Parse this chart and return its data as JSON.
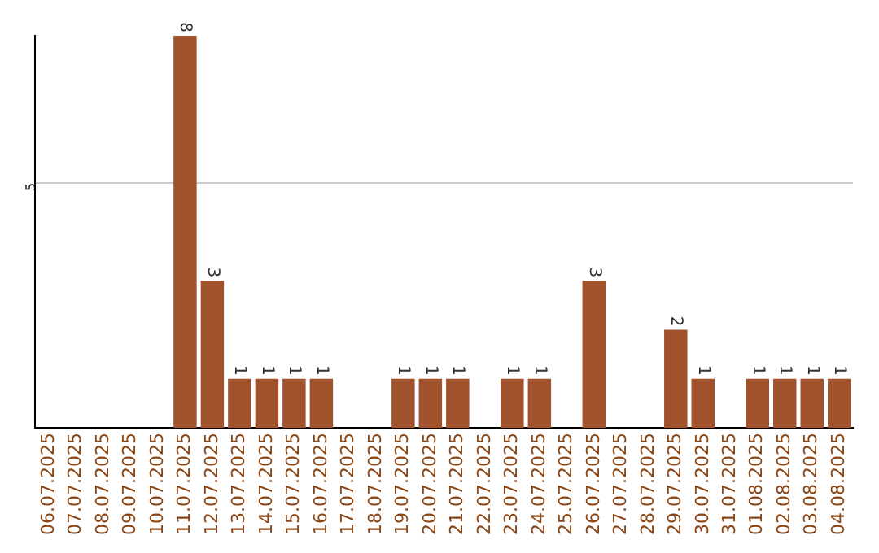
{
  "chart_data": {
    "type": "bar",
    "categories": [
      "06.07.2025",
      "07.07.2025",
      "08.07.2025",
      "09.07.2025",
      "10.07.2025",
      "11.07.2025",
      "12.07.2025",
      "13.07.2025",
      "14.07.2025",
      "15.07.2025",
      "16.07.2025",
      "17.07.2025",
      "18.07.2025",
      "19.07.2025",
      "20.07.2025",
      "21.07.2025",
      "22.07.2025",
      "23.07.2025",
      "24.07.2025",
      "25.07.2025",
      "26.07.2025",
      "27.07.2025",
      "28.07.2025",
      "29.07.2025",
      "30.07.2025",
      "31.07.2025",
      "01.08.2025",
      "02.08.2025",
      "03.08.2025",
      "04.08.2025"
    ],
    "values": [
      0,
      0,
      0,
      0,
      0,
      8,
      3,
      1,
      1,
      1,
      1,
      0,
      0,
      1,
      1,
      1,
      0,
      1,
      1,
      0,
      3,
      0,
      0,
      2,
      1,
      0,
      1,
      1,
      1,
      1
    ],
    "value_labels": [
      null,
      null,
      null,
      null,
      null,
      "8",
      "3",
      "1",
      "1",
      "1",
      "1",
      null,
      null,
      "1",
      "1",
      "1",
      null,
      "1",
      "1",
      null,
      "3",
      null,
      null,
      "2",
      "1",
      null,
      "1",
      "1",
      "1",
      "1"
    ],
    "color": "#a0522d",
    "ylim": [
      0,
      8
    ],
    "yticks": [
      5
    ],
    "grid": "y",
    "legend": false
  }
}
